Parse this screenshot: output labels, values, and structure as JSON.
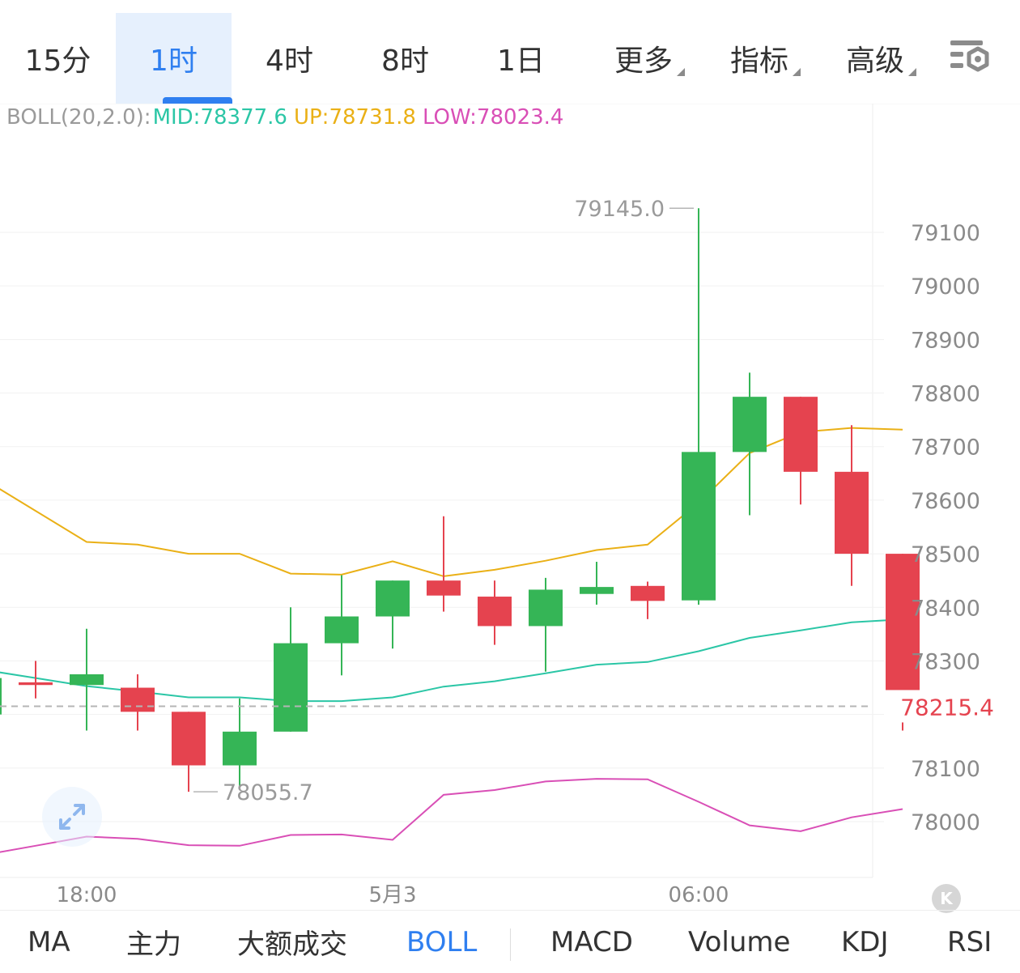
{
  "timeframe_tabs": [
    {
      "label": "15分"
    },
    {
      "label": "1时",
      "active": true
    },
    {
      "label": "4时"
    },
    {
      "label": "8时"
    },
    {
      "label": "1日"
    },
    {
      "label": "更多",
      "dropdown": true
    },
    {
      "label": "指标",
      "dropdown": true
    },
    {
      "label": "高级",
      "dropdown": true
    }
  ],
  "settings_icon": "chart-settings-icon",
  "indicator": {
    "name": "BOLL(20,2.0):",
    "mid": "MID:78377.6",
    "up": "UP:78731.8",
    "low": "LOW:78023.4"
  },
  "colors": {
    "up_candle": "#35b556",
    "down_candle": "#e5434f",
    "mid": "#2bc6a6",
    "upper": "#eab016",
    "lower": "#d94fb6",
    "accent": "#2f7ff0",
    "last_price": "#e5434f"
  },
  "chart_data": {
    "type": "candlestick",
    "y_ticks": [
      79100,
      79000,
      78900,
      78800,
      78700,
      78600,
      78500,
      78400,
      78300,
      78100,
      78000
    ],
    "x_ticks": [
      {
        "label": "18:00",
        "index": 1
      },
      {
        "label": "5月3",
        "index": 7
      },
      {
        "label": "06:00",
        "index": 13
      }
    ],
    "candles": [
      {
        "o": 78260,
        "c": 78255,
        "h": 78300,
        "l": 78230
      },
      {
        "o": 78255,
        "c": 78275,
        "h": 78360,
        "l": 78170
      },
      {
        "o": 78250,
        "c": 78205,
        "h": 78275,
        "l": 78170
      },
      {
        "o": 78205,
        "c": 78105,
        "h": 78205,
        "l": 78055.7
      },
      {
        "o": 78105,
        "c": 78168,
        "h": 78230,
        "l": 78060
      },
      {
        "o": 78168,
        "c": 78333,
        "h": 78400,
        "l": 78168
      },
      {
        "o": 78333,
        "c": 78383,
        "h": 78460,
        "l": 78273
      },
      {
        "o": 78383,
        "c": 78450,
        "h": 78450,
        "l": 78323
      },
      {
        "o": 78450,
        "c": 78422,
        "h": 78570,
        "l": 78392
      },
      {
        "o": 78420,
        "c": 78365,
        "h": 78450,
        "l": 78330
      },
      {
        "o": 78365,
        "c": 78433,
        "h": 78455,
        "l": 78280
      },
      {
        "o": 78425,
        "c": 78438,
        "h": 78485,
        "l": 78405
      },
      {
        "o": 78440,
        "c": 78412,
        "h": 78448,
        "l": 78378
      },
      {
        "o": 78413,
        "c": 78690,
        "h": 79145.0,
        "l": 78405
      },
      {
        "o": 78690,
        "c": 78793,
        "h": 78838,
        "l": 78572
      },
      {
        "o": 78793,
        "c": 78653,
        "h": 78793,
        "l": 78592
      },
      {
        "o": 78653,
        "c": 78500,
        "h": 78740,
        "l": 78440
      },
      {
        "o": 78500,
        "c": 78220,
        "h": 78500,
        "l": 78170
      }
    ],
    "boll": {
      "up": [
        78580,
        78522,
        78517,
        78500,
        78500,
        78463,
        78461,
        78486,
        78458,
        78470,
        78487,
        78507,
        78517,
        78595,
        78688,
        78727,
        78735,
        78731.8
      ],
      "mid": [
        78268,
        78253,
        78243,
        78232,
        78232,
        78225,
        78225,
        78232,
        78252,
        78262,
        78277,
        78293,
        78298,
        78318,
        78343,
        78357,
        78372,
        78377.6
      ],
      "low": [
        77955,
        77972,
        77968,
        77956,
        77955,
        77975,
        77976,
        77966,
        78050,
        78059,
        78075,
        78080,
        78079,
        78037,
        77993,
        77982,
        78008,
        78023.4
      ]
    },
    "last_price": "78215.4",
    "high_label": "79145.0",
    "low_label": "78055.7"
  },
  "bottom_tabs": [
    {
      "label": "MA"
    },
    {
      "label": "主力"
    },
    {
      "label": "大额成交"
    },
    {
      "label": "BOLL",
      "active": true
    },
    {
      "label": "MACD"
    },
    {
      "label": "Volume"
    },
    {
      "label": "KDJ"
    },
    {
      "label": "RSI"
    }
  ],
  "scroll_button_label": "K"
}
